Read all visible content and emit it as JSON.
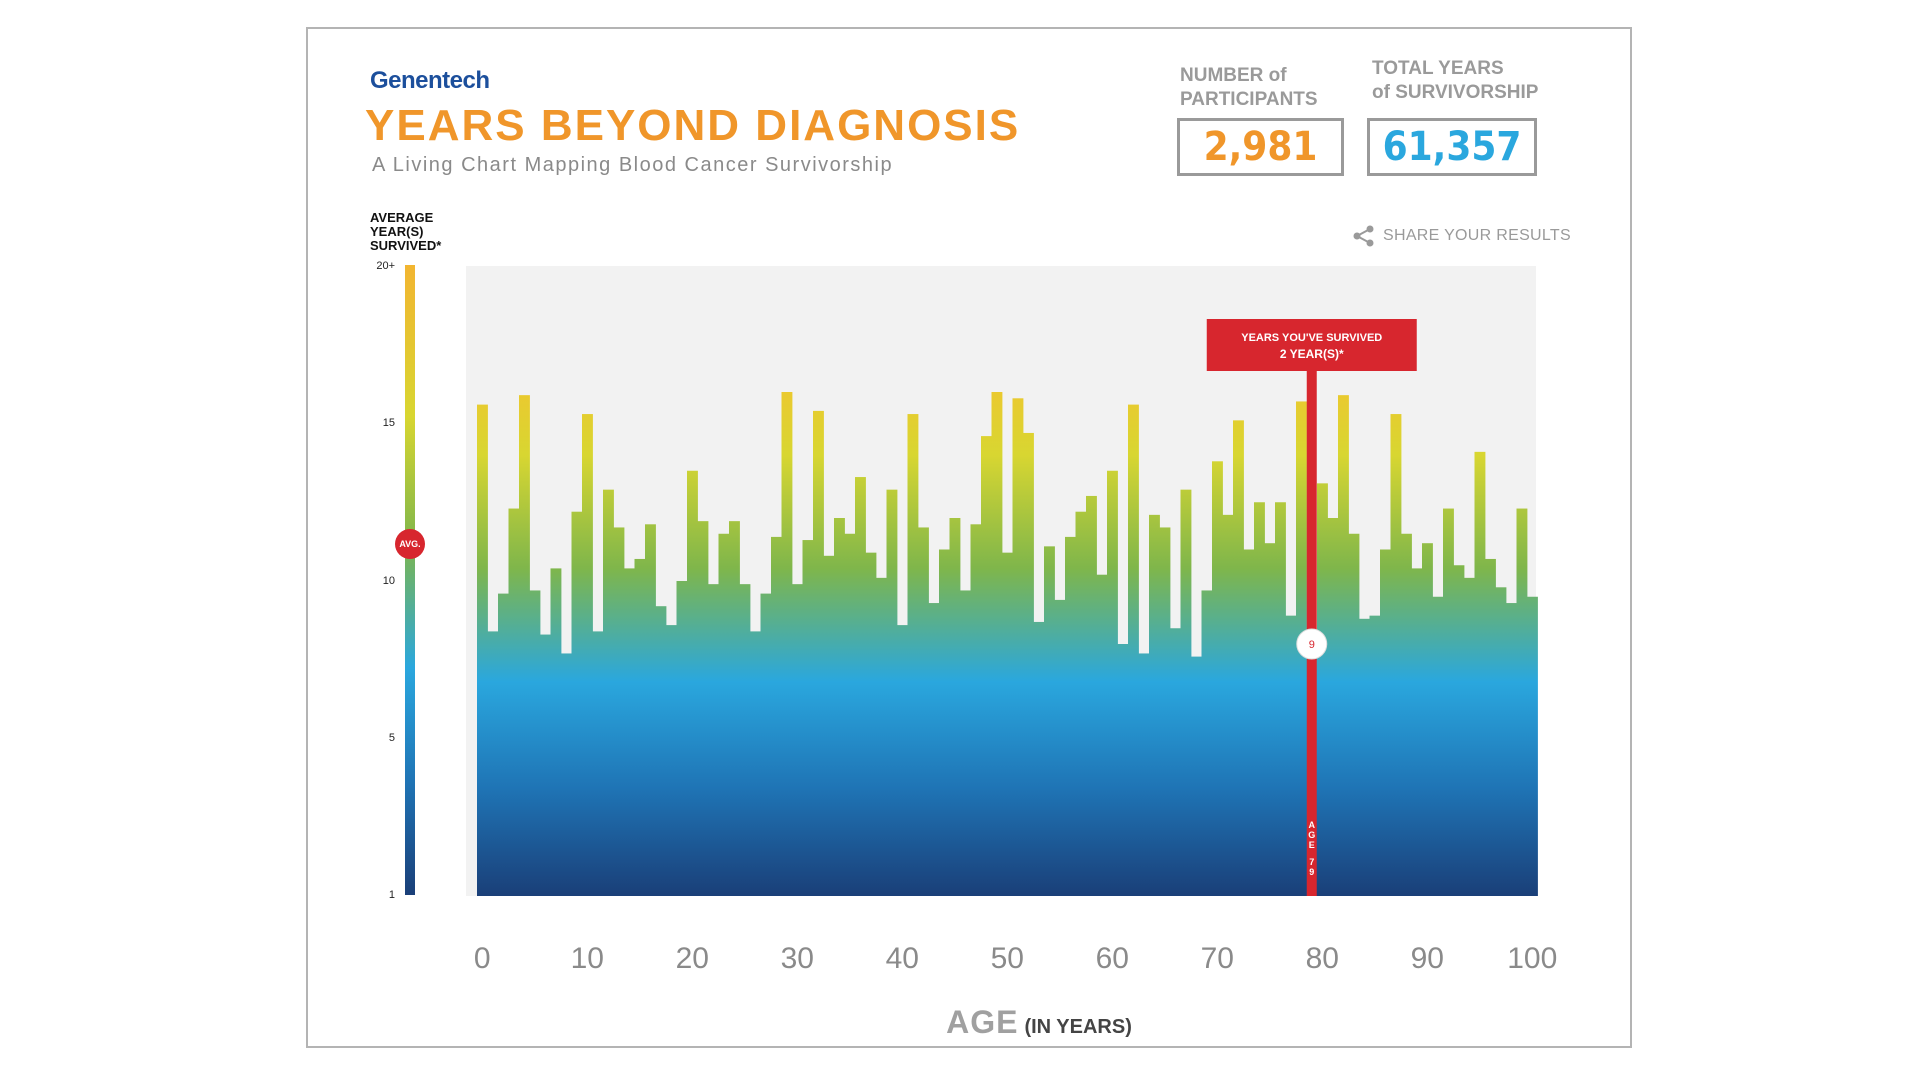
{
  "brand": "Genentech",
  "title": "YEARS BEYOND DIAGNOSIS",
  "subtitle": "A Living Chart Mapping Blood Cancer Survivorship",
  "stats": {
    "participants_label_1": "NUMBER of",
    "participants_label_2": "PARTICIPANTS",
    "participants_value": "2,981",
    "survivorship_label_1": "TOTAL YEARS",
    "survivorship_label_2": "of SURVIVORSHIP",
    "survivorship_value": "61,357"
  },
  "share": {
    "label": "SHARE YOUR RESULTS",
    "icon": "share-icon"
  },
  "y_axis": {
    "label_1": "AVERAGE",
    "label_2": "YEAR(S)",
    "label_3": "SURVIVED*",
    "ticks": [
      "20+",
      "15",
      "10",
      "5",
      "1"
    ],
    "avg_label": "AVG."
  },
  "x_axis": {
    "title_main": "AGE",
    "title_sub": "(IN YEARS)"
  },
  "marker": {
    "callout_line1": "YEARS YOU'VE SURVIVED",
    "callout_line2": "2 YEAR(S)*",
    "value_badge": "9",
    "age_label": "AGE 79"
  },
  "colors": {
    "orange": "#f0962a",
    "blue": "#2aa7de",
    "red": "#d7262e",
    "navy": "#1c4f9c"
  },
  "chart_data": {
    "type": "bar",
    "title": "YEARS BEYOND DIAGNOSIS",
    "xlabel": "AGE (IN YEARS)",
    "ylabel": "AVERAGE YEAR(S) SURVIVED*",
    "x_ticks": [
      0,
      10,
      20,
      30,
      40,
      50,
      60,
      70,
      80,
      90,
      100
    ],
    "y_ticks": [
      "1",
      "5",
      "10",
      "15",
      "20+"
    ],
    "ylim": [
      1,
      21
    ],
    "average": 12.2,
    "highlight": {
      "age": 79,
      "value": 9
    },
    "categories": [
      0,
      1,
      2,
      3,
      4,
      5,
      6,
      7,
      8,
      9,
      10,
      11,
      12,
      13,
      14,
      15,
      16,
      17,
      18,
      19,
      20,
      21,
      22,
      23,
      24,
      25,
      26,
      27,
      28,
      29,
      30,
      31,
      32,
      33,
      34,
      35,
      36,
      37,
      38,
      39,
      40,
      41,
      42,
      43,
      44,
      45,
      46,
      47,
      48,
      49,
      50,
      51,
      52,
      53,
      54,
      55,
      56,
      57,
      58,
      59,
      60,
      61,
      62,
      63,
      64,
      65,
      66,
      67,
      68,
      69,
      70,
      71,
      72,
      73,
      74,
      75,
      76,
      77,
      78,
      79,
      80,
      81,
      82,
      83,
      84,
      85,
      86,
      87,
      88,
      89,
      90,
      91,
      92,
      93,
      94,
      95,
      96,
      97,
      98,
      99,
      100
    ],
    "values": [
      16.6,
      9.4,
      10.6,
      13.3,
      16.9,
      10.7,
      9.3,
      11.4,
      8.7,
      13.2,
      16.3,
      9.4,
      13.9,
      12.7,
      11.4,
      11.7,
      12.8,
      10.2,
      9.6,
      11.0,
      14.5,
      12.9,
      10.9,
      12.5,
      12.9,
      10.9,
      9.4,
      10.6,
      12.4,
      17.0,
      10.9,
      12.3,
      16.4,
      11.8,
      13.0,
      12.5,
      14.3,
      11.9,
      11.1,
      13.9,
      9.6,
      16.3,
      12.7,
      10.3,
      12.0,
      13.0,
      10.7,
      12.8,
      15.6,
      17.0,
      11.9,
      16.8,
      15.7,
      9.7,
      12.1,
      10.4,
      12.4,
      13.2,
      13.7,
      11.2,
      14.5,
      9.0,
      16.6,
      8.7,
      13.1,
      12.7,
      9.5,
      13.9,
      8.6,
      10.7,
      14.8,
      13.1,
      16.1,
      12.0,
      13.5,
      12.2,
      13.5,
      9.9,
      16.7,
      8.7,
      14.1,
      13.0,
      16.9,
      12.5,
      9.8,
      9.9,
      12.0,
      16.3,
      12.5,
      11.4,
      12.2,
      10.5,
      13.3,
      11.5,
      11.1,
      15.1,
      11.7,
      10.8,
      10.3,
      13.3,
      10.5
    ]
  }
}
